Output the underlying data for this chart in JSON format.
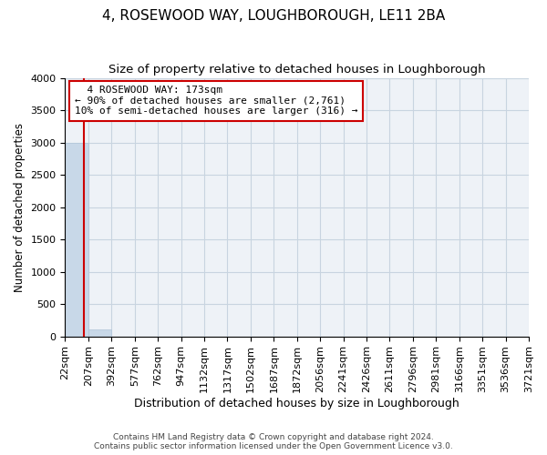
{
  "title": "4, ROSEWOOD WAY, LOUGHBOROUGH, LE11 2BA",
  "subtitle": "Size of property relative to detached houses in Loughborough",
  "xlabel": "Distribution of detached houses by size in Loughborough",
  "ylabel": "Number of detached properties",
  "bin_edges": [
    22,
    207,
    392,
    577,
    762,
    947,
    1132,
    1317,
    1502,
    1687,
    1872,
    2056,
    2241,
    2426,
    2611,
    2796,
    2981,
    3166,
    3351,
    3536,
    3721
  ],
  "bar_heights": [
    3000,
    110,
    0,
    0,
    0,
    0,
    0,
    0,
    0,
    0,
    0,
    0,
    0,
    0,
    0,
    0,
    0,
    0,
    0,
    0
  ],
  "bar_color": "#c8d8e8",
  "bar_edgecolor": "#b0c4d8",
  "property_size": 173,
  "property_label": "4 ROSEWOOD WAY: 173sqm",
  "annotation_line1": "← 90% of detached houses are smaller (2,761)",
  "annotation_line2": "10% of semi-detached houses are larger (316) →",
  "vline_color": "#cc0000",
  "annotation_box_color": "#ffffff",
  "annotation_box_edgecolor": "#cc0000",
  "ylim": [
    0,
    4000
  ],
  "yticks": [
    0,
    500,
    1000,
    1500,
    2000,
    2500,
    3000,
    3500,
    4000
  ],
  "grid_color": "#c8d4e0",
  "bg_color": "#eef2f7",
  "footnote_line1": "Contains HM Land Registry data © Crown copyright and database right 2024.",
  "footnote_line2": "Contains public sector information licensed under the Open Government Licence v3.0.",
  "title_fontsize": 11,
  "subtitle_fontsize": 9.5,
  "xlabel_fontsize": 9,
  "ylabel_fontsize": 8.5,
  "tick_fontsize": 8,
  "annot_fontsize": 8
}
